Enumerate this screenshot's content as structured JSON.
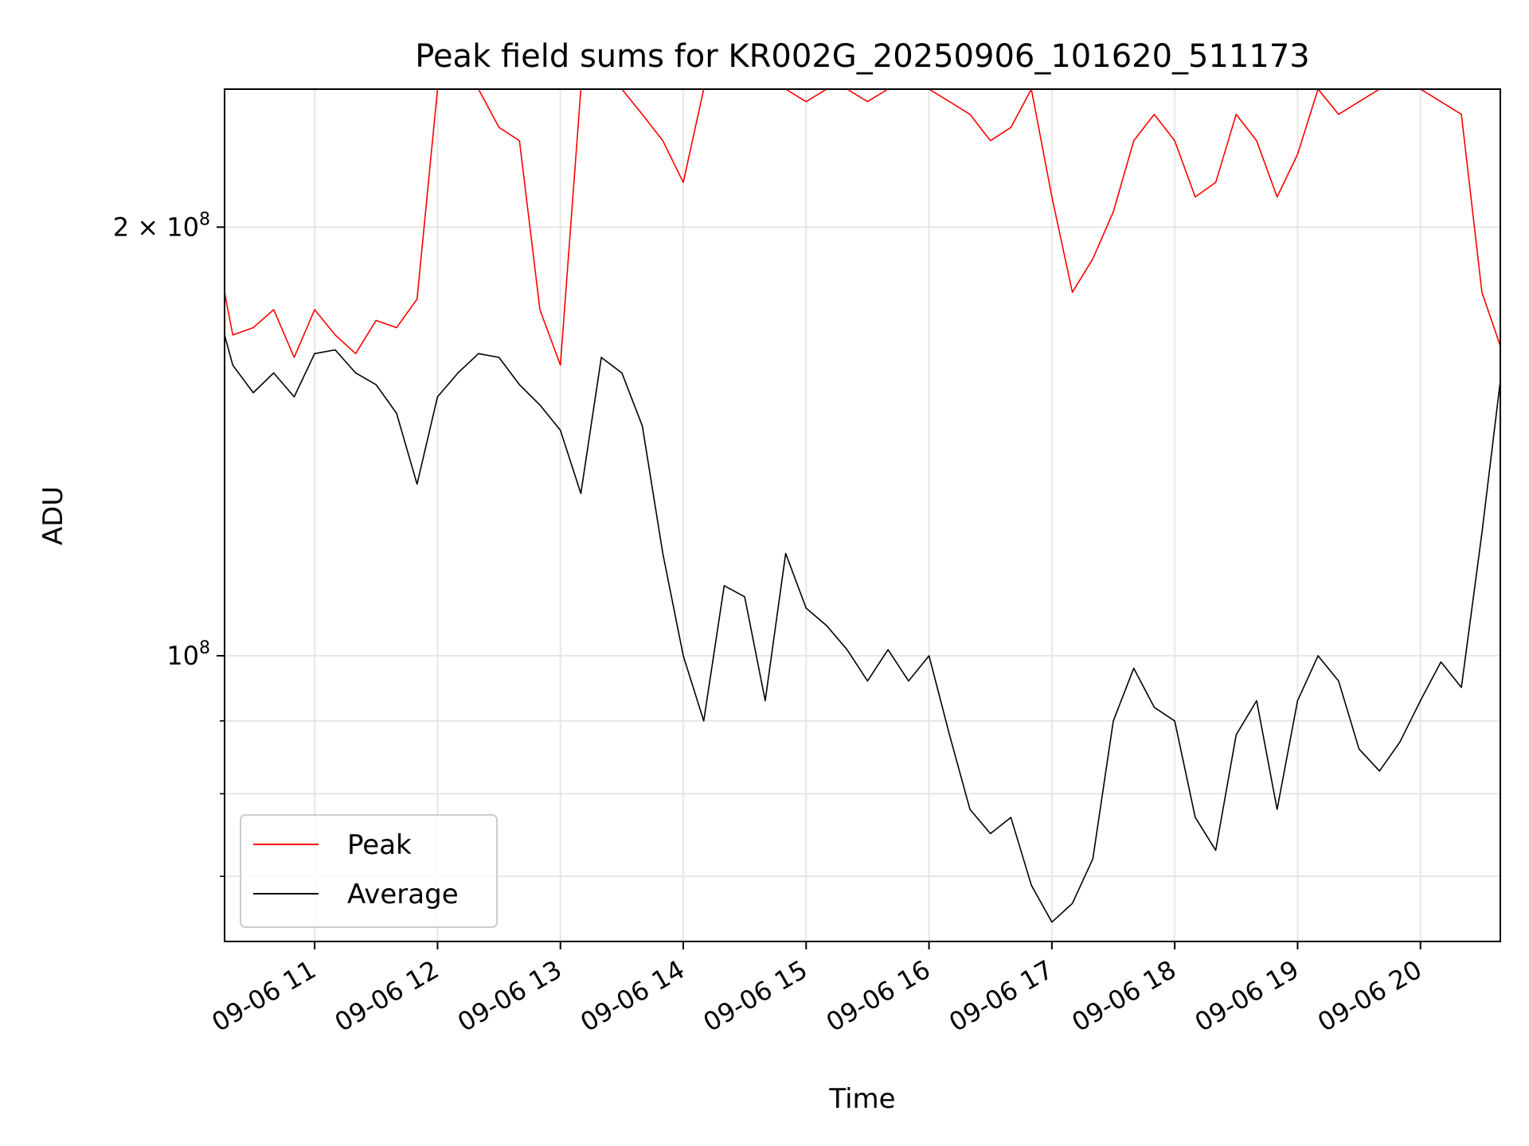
{
  "chart_data": {
    "type": "line",
    "title": "Peak field sums for KR002G_20250906_101620_511173",
    "xlabel": "Time",
    "ylabel": "ADU",
    "y_scale": "log",
    "xlim": [
      "2025-09-06 10:16",
      "2025-09-06 20:39"
    ],
    "ylim": [
      63000000,
      250000000
    ],
    "x_ticks": [
      "09-06 11",
      "09-06 12",
      "09-06 13",
      "09-06 14",
      "09-06 15",
      "09-06 16",
      "09-06 17",
      "09-06 18",
      "09-06 19",
      "09-06 20"
    ],
    "y_ticks": [
      {
        "value": 100000000,
        "base": "10",
        "exp": "8",
        "mult": ""
      },
      {
        "value": 200000000,
        "base": "10",
        "exp": "8",
        "mult": "2 × "
      }
    ],
    "y_minor_ticks": [
      70000000,
      80000000,
      90000000
    ],
    "grid": true,
    "legend": "lower-left",
    "series": [
      {
        "name": "Peak",
        "color": "#ff0000",
        "x": [
          "10:16",
          "10:20",
          "10:30",
          "10:40",
          "10:50",
          "11:00",
          "11:10",
          "11:20",
          "11:30",
          "11:40",
          "11:50",
          "12:00",
          "12:10",
          "12:20",
          "12:30",
          "12:40",
          "12:50",
          "13:00",
          "13:10",
          "13:20",
          "13:30",
          "13:40",
          "13:50",
          "14:00",
          "14:10",
          "14:20",
          "14:30",
          "14:40",
          "14:50",
          "15:00",
          "15:10",
          "15:20",
          "15:30",
          "15:40",
          "15:50",
          "16:00",
          "16:10",
          "16:20",
          "16:30",
          "16:40",
          "16:50",
          "17:00",
          "17:10",
          "17:20",
          "17:30",
          "17:40",
          "17:50",
          "18:00",
          "18:10",
          "18:20",
          "18:30",
          "18:40",
          "18:50",
          "19:00",
          "19:10",
          "19:20",
          "19:30",
          "19:40",
          "19:50",
          "20:00",
          "20:10",
          "20:20",
          "20:30",
          "20:39"
        ],
        "y": [
          180000000,
          168000000,
          170000000,
          175000000,
          162000000,
          175000000,
          168000000,
          163000000,
          172000000,
          170000000,
          178000000,
          250000000,
          250000000,
          250000000,
          235000000,
          230000000,
          175000000,
          160000000,
          250000000,
          250000000,
          250000000,
          240000000,
          230000000,
          215000000,
          250000000,
          250000000,
          250000000,
          250000000,
          250000000,
          245000000,
          250000000,
          250000000,
          245000000,
          250000000,
          250000000,
          250000000,
          245000000,
          240000000,
          230000000,
          235000000,
          250000000,
          210000000,
          180000000,
          190000000,
          205000000,
          230000000,
          240000000,
          230000000,
          210000000,
          215000000,
          240000000,
          230000000,
          210000000,
          225000000,
          250000000,
          240000000,
          245000000,
          250000000,
          250000000,
          250000000,
          245000000,
          240000000,
          180000000,
          165000000
        ]
      },
      {
        "name": "Average",
        "color": "#000000",
        "x": [
          "10:16",
          "10:20",
          "10:30",
          "10:40",
          "10:50",
          "11:00",
          "11:10",
          "11:20",
          "11:30",
          "11:40",
          "11:50",
          "12:00",
          "12:10",
          "12:20",
          "12:30",
          "12:40",
          "12:50",
          "13:00",
          "13:10",
          "13:20",
          "13:30",
          "13:40",
          "13:50",
          "14:00",
          "14:10",
          "14:20",
          "14:30",
          "14:40",
          "14:50",
          "15:00",
          "15:10",
          "15:20",
          "15:30",
          "15:40",
          "15:50",
          "16:00",
          "16:10",
          "16:20",
          "16:30",
          "16:40",
          "16:50",
          "17:00",
          "17:10",
          "17:20",
          "17:30",
          "17:40",
          "17:50",
          "18:00",
          "18:10",
          "18:20",
          "18:30",
          "18:40",
          "18:50",
          "19:00",
          "19:10",
          "19:20",
          "19:30",
          "19:40",
          "19:50",
          "20:00",
          "20:10",
          "20:20",
          "20:30",
          "20:39"
        ],
        "y": [
          168000000,
          160000000,
          153000000,
          158000000,
          152000000,
          163000000,
          164000000,
          158000000,
          155000000,
          148000000,
          132000000,
          152000000,
          158000000,
          163000000,
          162000000,
          155000000,
          150000000,
          144000000,
          130000000,
          162000000,
          158000000,
          145000000,
          118000000,
          100000000,
          90000000,
          112000000,
          110000000,
          93000000,
          118000000,
          108000000,
          105000000,
          101000000,
          96000000,
          101000000,
          96000000,
          100000000,
          88000000,
          78000000,
          75000000,
          77000000,
          69000000,
          65000000,
          67000000,
          72000000,
          90000000,
          98000000,
          92000000,
          90000000,
          77000000,
          73000000,
          88000000,
          93000000,
          78000000,
          93000000,
          100000000,
          96000000,
          86000000,
          83000000,
          87000000,
          93000000,
          99000000,
          95000000,
          122000000,
          156000000
        ]
      }
    ]
  }
}
